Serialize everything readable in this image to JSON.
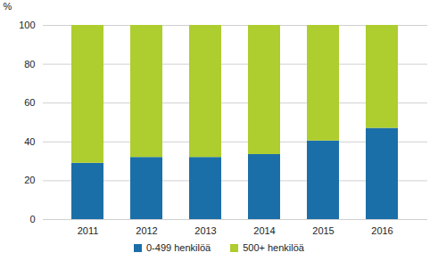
{
  "chart_data": {
    "type": "bar",
    "stacked": true,
    "grid": true,
    "y_label": "%",
    "categories": [
      "2011",
      "2012",
      "2013",
      "2014",
      "2015",
      "2016"
    ],
    "series": [
      {
        "name": "0-499 henkilöä",
        "color": "#1b6fa8",
        "values": [
          29,
          32,
          32,
          33.5,
          40.5,
          47
        ]
      },
      {
        "name": "500+ henkilöä",
        "color": "#aecd2e",
        "values": [
          71,
          68,
          68,
          66.5,
          59.5,
          53
        ]
      }
    ],
    "ylim": [
      0,
      100
    ],
    "yticks": [
      0,
      20,
      40,
      60,
      80,
      100
    ],
    "legend": "bottom"
  }
}
